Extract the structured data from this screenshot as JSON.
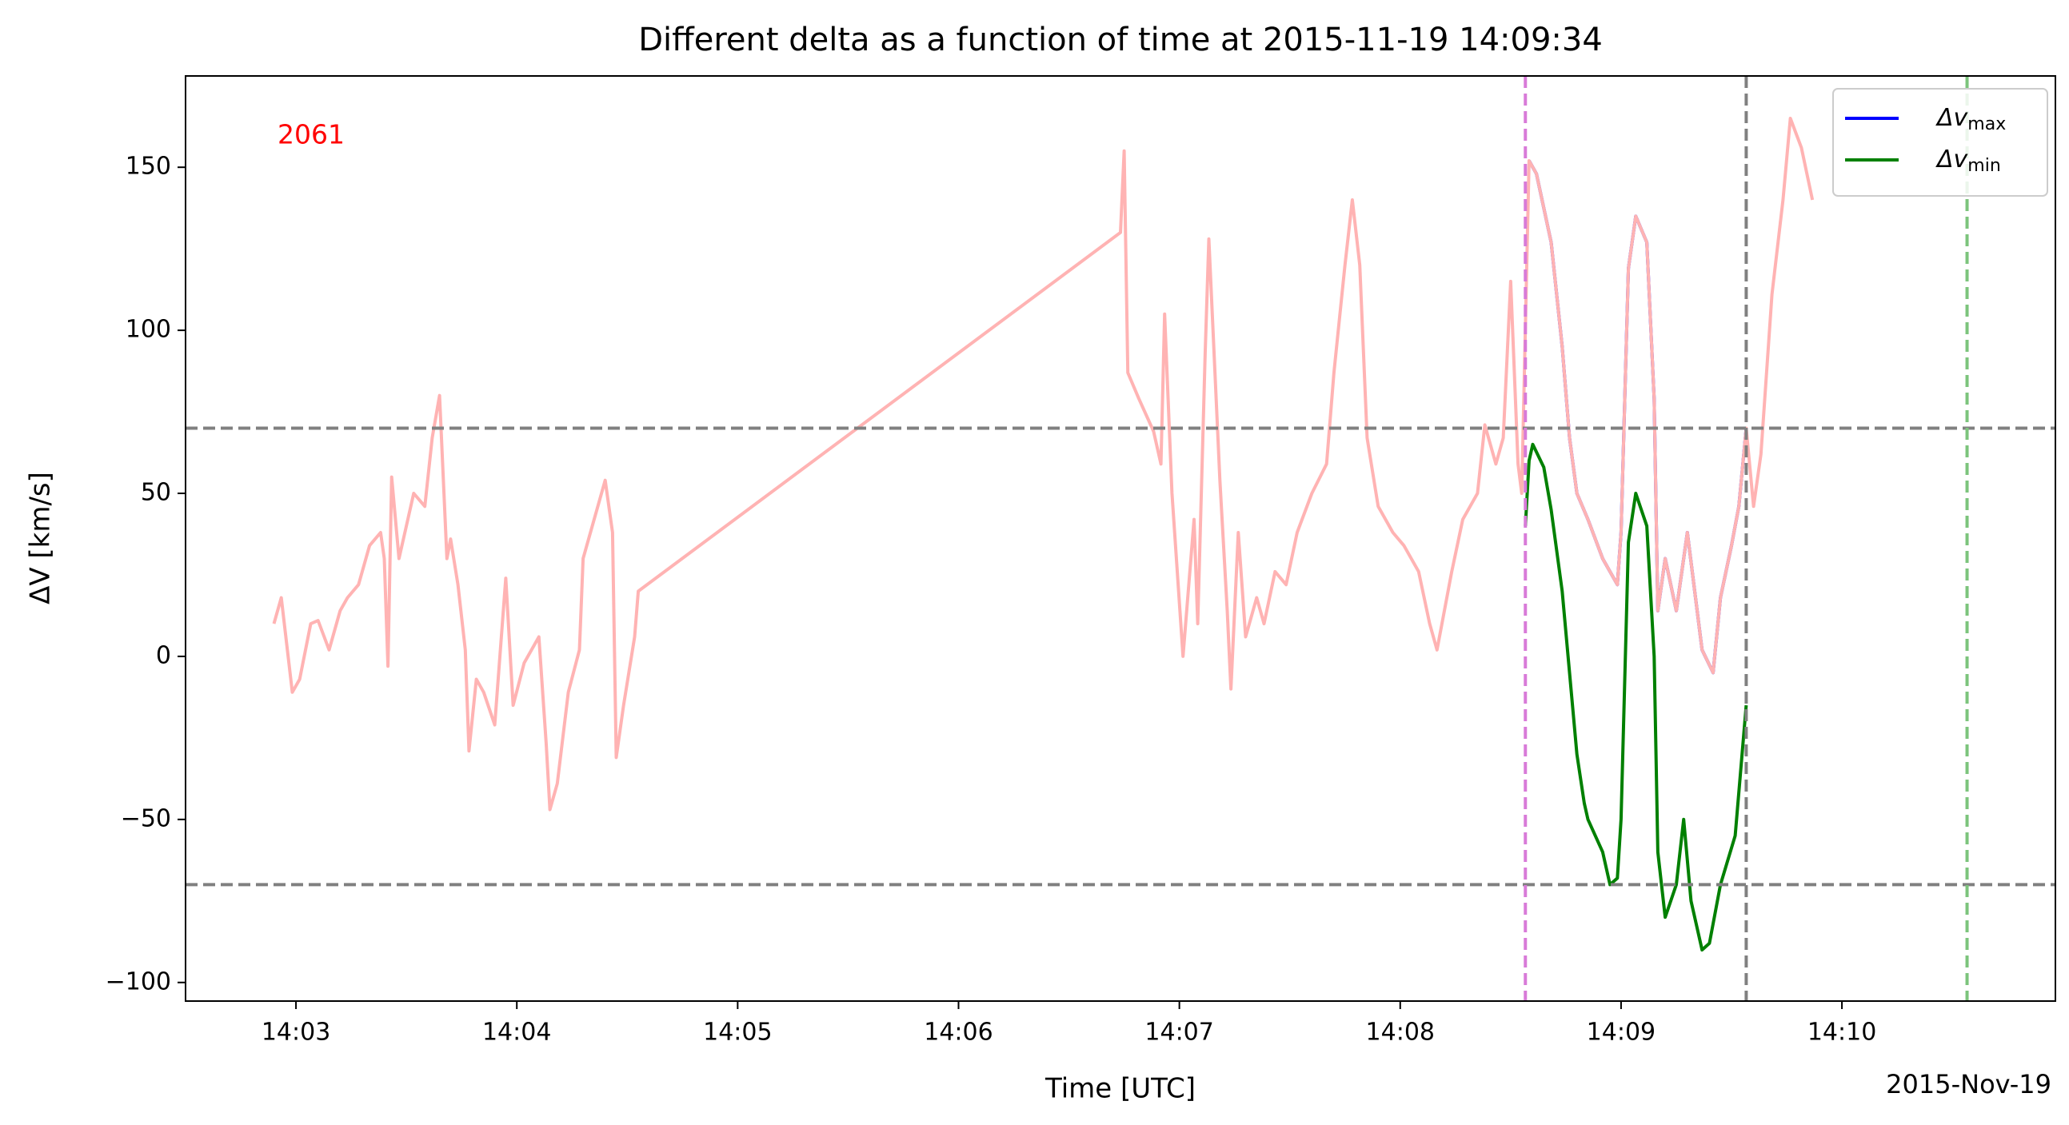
{
  "chart_data": {
    "type": "line",
    "title": "Different delta as a function of time at 2015-11-19 14:09:34",
    "xlabel": "Time [UTC]",
    "ylabel": "ΔV [km/s]",
    "annotation": "2061",
    "annotation_color": "#ff0000",
    "date_label": "2015-Nov-19",
    "xlim": [
      "14:02:30",
      "14:10:58"
    ],
    "xticks": [
      {
        "value": "14:03:00",
        "label": "14:03"
      },
      {
        "value": "14:04:00",
        "label": "14:04"
      },
      {
        "value": "14:05:00",
        "label": "14:05"
      },
      {
        "value": "14:06:00",
        "label": "14:06"
      },
      {
        "value": "14:07:00",
        "label": "14:07"
      },
      {
        "value": "14:08:00",
        "label": "14:08"
      },
      {
        "value": "14:09:00",
        "label": "14:09"
      },
      {
        "value": "14:10:00",
        "label": "14:10"
      }
    ],
    "ylim": [
      -105.7,
      178
    ],
    "yticks": [
      {
        "value": -100,
        "label": "−100"
      },
      {
        "value": -50,
        "label": "−50"
      },
      0,
      50,
      100,
      150
    ],
    "hlines": [
      {
        "y": 70,
        "color": "#808080"
      },
      {
        "y": -70,
        "color": "#808080"
      }
    ],
    "vlines": [
      {
        "x": "14:08:34",
        "color": "#d87bd8"
      },
      {
        "x": "14:09:34",
        "color": "#808080"
      },
      {
        "x": "14:10:34",
        "color": "#7cc47c"
      }
    ],
    "legend": "upper right",
    "series": [
      {
        "color": "#ffb3b3",
        "legend": false,
        "x": [
          "14:02:54",
          "14:02:56",
          "14:02:59",
          "14:03:01",
          "14:03:04",
          "14:03:06",
          "14:03:09",
          "14:03:12",
          "14:03:14",
          "14:03:17",
          "14:03:20",
          "14:03:23",
          "14:03:24",
          "14:03:25",
          "14:03:26",
          "14:03:28",
          "14:03:32",
          "14:03:35",
          "14:03:37",
          "14:03:39",
          "14:03:41",
          "14:03:42",
          "14:03:44",
          "14:03:46",
          "14:03:47",
          "14:03:49",
          "14:03:51",
          "14:03:54",
          "14:03:57",
          "14:03:59",
          "14:04:02",
          "14:04:06",
          "14:04:08",
          "14:04:09",
          "14:04:11",
          "14:04:14",
          "14:04:17",
          "14:04:18",
          "14:04:21",
          "14:04:24",
          "14:04:26",
          "14:04:27",
          "14:04:29",
          "14:04:32",
          "14:04:33",
          "14:06:44",
          "14:06:45",
          "14:06:46",
          "14:06:49",
          "14:06:53",
          "14:06:55",
          "14:06:56",
          "14:06:58",
          "14:07:01",
          "14:07:04",
          "14:07:05",
          "14:07:07",
          "14:07:08",
          "14:07:11",
          "14:07:13",
          "14:07:14",
          "14:07:16",
          "14:07:18",
          "14:07:21",
          "14:07:23",
          "14:07:26",
          "14:07:29",
          "14:07:32",
          "14:07:36",
          "14:07:40",
          "14:07:42",
          "14:07:45",
          "14:07:47",
          "14:07:49",
          "14:07:51",
          "14:07:54",
          "14:07:58",
          "14:08:01",
          "14:08:05",
          "14:08:08",
          "14:08:10",
          "14:08:14",
          "14:08:17",
          "14:08:21",
          "14:08:23",
          "14:08:26",
          "14:08:28",
          "14:08:30",
          "14:08:32",
          "14:08:33",
          "14:08:35",
          "14:08:37",
          "14:08:41",
          "14:08:44",
          "14:08:46",
          "14:08:48",
          "14:08:51",
          "14:08:55",
          "14:08:59",
          "14:09:00",
          "14:09:02",
          "14:09:04",
          "14:09:07",
          "14:09:09",
          "14:09:10",
          "14:09:12",
          "14:09:15",
          "14:09:18",
          "14:09:22",
          "14:09:25",
          "14:09:27",
          "14:09:30",
          "14:09:32",
          "14:09:34",
          "14:09:36",
          "14:09:38",
          "14:09:41",
          "14:09:44",
          "14:09:46",
          "14:09:49",
          "14:09:52"
        ],
        "values": [
          10,
          18,
          -11,
          -7,
          10,
          11,
          2,
          14,
          18,
          22,
          34,
          38,
          30,
          -3,
          55,
          30,
          50,
          46,
          67,
          80,
          30,
          36,
          22,
          2,
          -29,
          -7,
          -11,
          -21,
          24,
          -15,
          -2,
          6,
          -27,
          -47,
          -39,
          -11,
          2,
          30,
          42,
          54,
          38,
          -31,
          -15,
          6,
          20,
          130,
          155,
          87,
          79,
          69,
          59,
          105,
          50,
          0,
          42,
          10,
          93,
          128,
          54,
          14,
          -10,
          38,
          6,
          18,
          10,
          26,
          22,
          38,
          50,
          59,
          87,
          120,
          140,
          120,
          67,
          46,
          38,
          34,
          26,
          10,
          2,
          26,
          42,
          50,
          71,
          59,
          67,
          115,
          59,
          50,
          152,
          148,
          127,
          95,
          67,
          50,
          42,
          30,
          22,
          38,
          119,
          135,
          127,
          79,
          14,
          30,
          14,
          38,
          2,
          -5,
          18,
          34,
          46,
          70,
          46,
          62,
          111,
          140,
          165,
          156,
          140
        ]
      },
      {
        "name": "Δv",
        "name_sub": "max",
        "color": "#0000ff",
        "x": [
          "14:08:35",
          "14:08:37",
          "14:08:41",
          "14:08:44",
          "14:08:46",
          "14:08:48",
          "14:08:51",
          "14:08:55",
          "14:08:59",
          "14:09:00",
          "14:09:02",
          "14:09:04",
          "14:09:07",
          "14:09:09",
          "14:09:10",
          "14:09:12",
          "14:09:15",
          "14:09:18",
          "14:09:22",
          "14:09:25",
          "14:09:27",
          "14:09:30",
          "14:09:32",
          "14:09:34"
        ],
        "values": [
          152,
          148,
          127,
          95,
          67,
          50,
          42,
          30,
          22,
          38,
          119,
          135,
          127,
          79,
          14,
          30,
          14,
          38,
          2,
          -5,
          18,
          34,
          46,
          70
        ]
      },
      {
        "name": "Δv",
        "name_sub": "min",
        "color": "#008000",
        "x": [
          "14:08:34",
          "14:08:35",
          "14:08:36",
          "14:08:39",
          "14:08:41",
          "14:08:44",
          "14:08:46",
          "14:08:48",
          "14:08:50",
          "14:08:51",
          "14:08:55",
          "14:08:57",
          "14:08:59",
          "14:09:00",
          "14:09:02",
          "14:09:04",
          "14:09:07",
          "14:09:09",
          "14:09:10",
          "14:09:12",
          "14:09:15",
          "14:09:17",
          "14:09:19",
          "14:09:22",
          "14:09:24",
          "14:09:27",
          "14:09:31",
          "14:09:34"
        ],
        "values": [
          40,
          60,
          65,
          58,
          45,
          20,
          -5,
          -30,
          -45,
          -50,
          -60,
          -70,
          -68,
          -50,
          35,
          50,
          40,
          0,
          -60,
          -80,
          -70,
          -50,
          -75,
          -90,
          -88,
          -70,
          -55,
          -15
        ]
      }
    ]
  }
}
